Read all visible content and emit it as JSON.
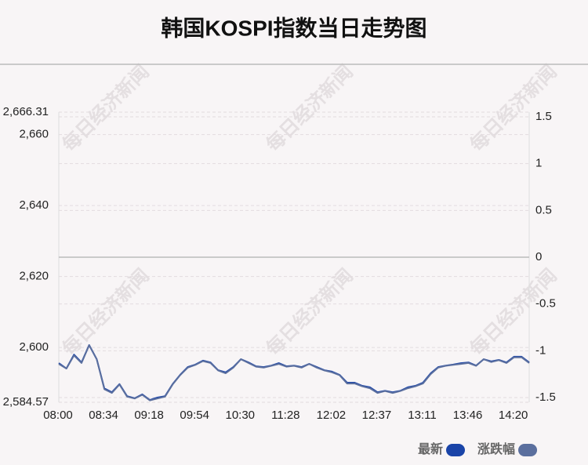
{
  "chart_data": {
    "type": "line",
    "title": "韩国KOSPI指数当日走势图",
    "watermark": "每日经济新闻",
    "categories": [
      "08:00",
      null,
      null,
      null,
      null,
      null,
      "08:34",
      null,
      null,
      null,
      null,
      null,
      "09:18",
      null,
      null,
      null,
      null,
      null,
      "09:54",
      null,
      null,
      null,
      null,
      null,
      "10:30",
      null,
      null,
      null,
      null,
      null,
      "11:28",
      null,
      null,
      null,
      null,
      null,
      "12:02",
      null,
      null,
      null,
      null,
      null,
      "12:37",
      null,
      null,
      null,
      null,
      null,
      "13:11",
      null,
      null,
      null,
      null,
      null,
      "13:46",
      null,
      null,
      null,
      null,
      null,
      "14:20",
      null,
      null
    ],
    "ylim": [
      2584.57,
      2666.31
    ],
    "yticks": [
      {
        "value": 2666.31,
        "label": "2,666.31"
      },
      {
        "value": 2660,
        "label": "2,660"
      },
      {
        "value": 2640,
        "label": "2,640"
      },
      {
        "value": 2620,
        "label": "2,620"
      },
      {
        "value": 2600,
        "label": "2,600"
      },
      {
        "value": 2584.57,
        "label": "2,584.57"
      }
    ],
    "y2lim": [
      -1.55,
      1.55
    ],
    "y2ticks": [
      1.5,
      1,
      0.5,
      0,
      -0.5,
      -1,
      -1.5
    ],
    "grid": true,
    "legend": "bottom-right",
    "series": [
      {
        "name": "最新",
        "color": "#1a44a8",
        "values": [
          2595.6,
          2594.1,
          2598.0,
          2595.8,
          2600.7,
          2596.7,
          2588.5,
          2587.4,
          2589.7,
          2586.3,
          2585.7,
          2586.8,
          2585.2,
          2585.9,
          2586.3,
          2589.7,
          2592.3,
          2594.5,
          2595.2,
          2596.3,
          2595.8,
          2593.6,
          2593.0,
          2594.5,
          2596.7,
          2595.8,
          2594.7,
          2594.5,
          2594.9,
          2595.6,
          2594.7,
          2594.9,
          2594.5,
          2595.4,
          2594.5,
          2593.6,
          2593.2,
          2592.3,
          2590.1,
          2590.1,
          2589.2,
          2588.8,
          2587.4,
          2587.8,
          2587.4,
          2587.8,
          2588.8,
          2589.2,
          2590.1,
          2592.7,
          2594.5,
          2594.9,
          2595.2,
          2595.6,
          2595.8,
          2594.9,
          2596.7,
          2596.1,
          2596.5,
          2595.8,
          2597.4,
          2597.4,
          2595.8
        ]
      },
      {
        "name": "涨跌幅",
        "color": "#5b6f9e",
        "axis": "y2",
        "values": [
          -1.14,
          -1.19,
          -1.05,
          -1.13,
          -0.94,
          -1.09,
          -1.41,
          -1.45,
          -1.36,
          -1.49,
          -1.51,
          -1.47,
          -1.53,
          -1.51,
          -1.49,
          -1.36,
          -1.26,
          -1.18,
          -1.15,
          -1.11,
          -1.13,
          -1.21,
          -1.24,
          -1.18,
          -1.09,
          -1.13,
          -1.17,
          -1.18,
          -1.16,
          -1.14,
          -1.17,
          -1.16,
          -1.18,
          -1.14,
          -1.18,
          -1.21,
          -1.23,
          -1.26,
          -1.35,
          -1.35,
          -1.38,
          -1.4,
          -1.45,
          -1.43,
          -1.45,
          -1.43,
          -1.4,
          -1.38,
          -1.35,
          -1.25,
          -1.18,
          -1.16,
          -1.15,
          -1.14,
          -1.13,
          -1.16,
          -1.09,
          -1.12,
          -1.1,
          -1.13,
          -1.07,
          -1.07,
          -1.13
        ]
      }
    ]
  }
}
